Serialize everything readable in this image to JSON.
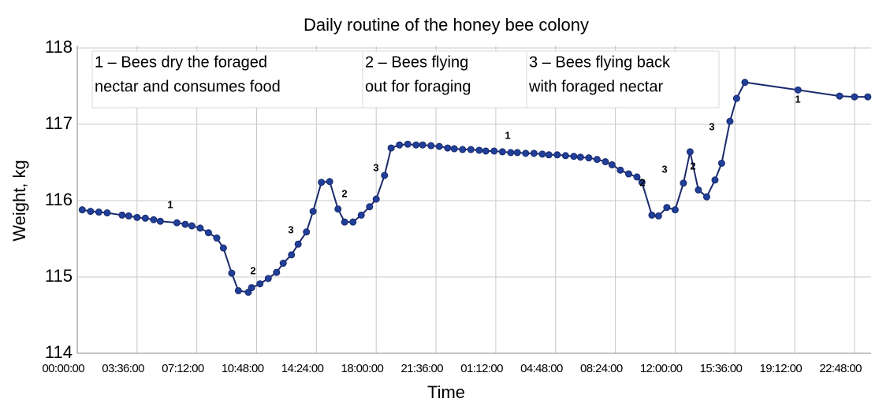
{
  "chart_data": {
    "type": "line",
    "title": "Daily routine of the honey bee colony",
    "x_label": "Time",
    "y_label": "Weight, kg",
    "xlim": [
      0,
      47.8
    ],
    "ylim": [
      114,
      118
    ],
    "xticks": [
      {
        "value": 0,
        "label": "00:00:00"
      },
      {
        "value": 3.6,
        "label": "03:36:00"
      },
      {
        "value": 7.2,
        "label": "07:12:00"
      },
      {
        "value": 10.8,
        "label": "10:48:00"
      },
      {
        "value": 14.4,
        "label": "14:24:00"
      },
      {
        "value": 18,
        "label": "18:00:00"
      },
      {
        "value": 21.6,
        "label": "21:36:00"
      },
      {
        "value": 25.2,
        "label": "01:12:00"
      },
      {
        "value": 28.8,
        "label": "04:48:00"
      },
      {
        "value": 32.4,
        "label": "08:24:00"
      },
      {
        "value": 36,
        "label": "12:00:00"
      },
      {
        "value": 39.6,
        "label": "15:36:00"
      },
      {
        "value": 43.2,
        "label": "19:12:00"
      },
      {
        "value": 46.8,
        "label": "22:48:00"
      }
    ],
    "yticks": [
      114,
      115,
      116,
      117,
      118
    ],
    "grid": true,
    "x": [
      0.3,
      0.8,
      1.3,
      1.8,
      2.7,
      3.1,
      3.6,
      4.1,
      4.6,
      5.0,
      6.0,
      6.5,
      6.9,
      7.4,
      7.9,
      8.4,
      8.8,
      9.3,
      9.7,
      10.3,
      10.5,
      11.0,
      11.5,
      12.0,
      12.4,
      12.9,
      13.3,
      13.8,
      14.2,
      14.7,
      15.2,
      15.7,
      16.1,
      16.6,
      17.1,
      17.6,
      18.0,
      18.5,
      18.9,
      19.4,
      19.9,
      20.4,
      20.8,
      21.3,
      21.8,
      22.3,
      22.7,
      23.2,
      23.7,
      24.2,
      24.6,
      25.1,
      25.6,
      26.1,
      26.5,
      27.0,
      27.5,
      28.0,
      28.4,
      28.9,
      29.4,
      29.9,
      30.3,
      30.8,
      31.3,
      31.8,
      32.2,
      32.7,
      33.2,
      33.7,
      34.0,
      34.6,
      35.0,
      35.5,
      36.0,
      36.5,
      36.9,
      37.4,
      37.9,
      38.4,
      38.8,
      39.3,
      39.7,
      40.2,
      43.4,
      45.9,
      46.8,
      47.6
    ],
    "series": [
      {
        "color": "#1a2a6c",
        "marker_color": "#1f3f99",
        "values": [
          115.88,
          115.86,
          115.85,
          115.84,
          115.81,
          115.8,
          115.78,
          115.77,
          115.75,
          115.73,
          115.71,
          115.69,
          115.67,
          115.64,
          115.58,
          115.51,
          115.38,
          115.05,
          114.82,
          114.8,
          114.86,
          114.91,
          114.98,
          115.06,
          115.18,
          115.29,
          115.43,
          115.59,
          115.86,
          116.24,
          116.25,
          115.89,
          115.72,
          115.72,
          115.81,
          115.92,
          116.02,
          116.33,
          116.69,
          116.73,
          116.74,
          116.73,
          116.73,
          116.72,
          116.71,
          116.69,
          116.68,
          116.67,
          116.67,
          116.66,
          116.65,
          116.65,
          116.64,
          116.63,
          116.63,
          116.62,
          116.62,
          116.61,
          116.6,
          116.6,
          116.59,
          116.58,
          116.57,
          116.56,
          116.54,
          116.51,
          116.47,
          116.4,
          116.35,
          116.31,
          116.24,
          115.81,
          115.8,
          115.91,
          115.88,
          116.23,
          116.64,
          116.14,
          116.05,
          116.27,
          116.49,
          117.04,
          117.34,
          117.55,
          117.45,
          117.37,
          117.36,
          117.36
        ]
      }
    ],
    "annotations": [
      "1",
      "2",
      "3",
      "2",
      "3",
      "1",
      "2",
      "3",
      "2",
      "3",
      "1"
    ],
    "notes": [
      [
        "1 – Bees dry the foraged",
        "nectar and consumes food"
      ],
      [
        "2 – Bees flying",
        "out for foraging"
      ],
      [
        "3 – Bees flying back",
        "with foraged nectar"
      ]
    ]
  }
}
